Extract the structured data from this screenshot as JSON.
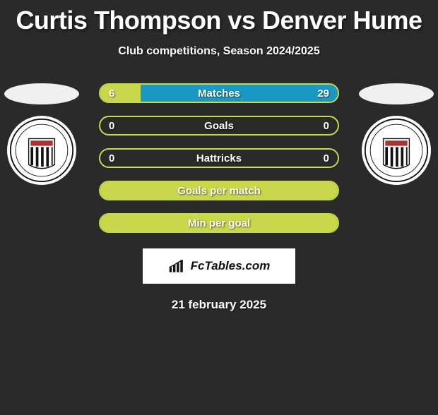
{
  "title": "Curtis Thompson vs Denver Hume",
  "subtitle": "Club competitions, Season 2024/2025",
  "date": "21 february 2025",
  "logo_text": "FcTables.com",
  "colors": {
    "bg": "#2a2a2a",
    "title": "#ffffff",
    "matches_border": "#c8d84a",
    "matches_fill_left": "#c8d84a",
    "matches_fill_right": "#1999c4",
    "goals_border": "#c8d84a",
    "hattricks_border": "#c8d84a",
    "gpm_border": "#c8d84a",
    "gpm_fill": "#c8d84a",
    "mpg_border": "#c8d84a",
    "mpg_fill": "#c8d84a"
  },
  "bars": [
    {
      "label": "Matches",
      "left_value": "6",
      "right_value": "29",
      "left_fill_pct": 17,
      "left_fill_color": "#c8d84a",
      "right_fill_pct": 83,
      "right_fill_color": "#1999c4",
      "border_color": "#c8d84a"
    },
    {
      "label": "Goals",
      "left_value": "0",
      "right_value": "0",
      "left_fill_pct": 0,
      "left_fill_color": "#c8d84a",
      "right_fill_pct": 0,
      "right_fill_color": "#1999c4",
      "border_color": "#c8d84a"
    },
    {
      "label": "Hattricks",
      "left_value": "0",
      "right_value": "0",
      "left_fill_pct": 0,
      "left_fill_color": "#c8d84a",
      "right_fill_pct": 0,
      "right_fill_color": "#1999c4",
      "border_color": "#c8d84a"
    },
    {
      "label": "Goals per match",
      "left_value": "",
      "right_value": "",
      "left_fill_pct": 100,
      "left_fill_color": "#c8d84a",
      "right_fill_pct": 0,
      "right_fill_color": "#1999c4",
      "border_color": "#c8d84a"
    },
    {
      "label": "Min per goal",
      "left_value": "",
      "right_value": "",
      "left_fill_pct": 100,
      "left_fill_color": "#c8d84a",
      "right_fill_pct": 0,
      "right_fill_color": "#1999c4",
      "border_color": "#c8d84a"
    }
  ]
}
